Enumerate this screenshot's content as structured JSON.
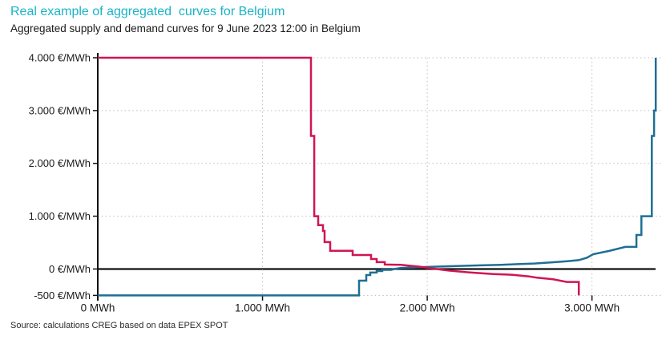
{
  "header": {
    "title": "Real example of aggregated  curves for Belgium",
    "subtitle": "Aggregated supply and demand curves for 9 June 2023 12:00 in Belgium"
  },
  "footer": {
    "source": "Source: calculations CREG based on data EPEX SPOT"
  },
  "colors": {
    "title": "#1ab3c6",
    "text": "#1a1a1a",
    "axis": "#111111",
    "zero_line": "#111111",
    "grid": "#c0c0c0",
    "supply": "#1d6f94",
    "demand": "#d01552"
  },
  "chart_data": {
    "type": "line",
    "title": "Real example of aggregated curves for Belgium",
    "subtitle": "Aggregated supply and demand curves for 9 June 2023 12:00 in Belgium",
    "xlabel": "MWh",
    "ylabel": "€/MWh",
    "xlim": [
      0,
      3425
    ],
    "ylim": [
      -500,
      4000
    ],
    "grid": "dotted",
    "legend": "none",
    "x_ticks": [
      {
        "value": 0,
        "label": "0 MWh"
      },
      {
        "value": 1000,
        "label": "1.000 MWh"
      },
      {
        "value": 2000,
        "label": "2.000 MWh"
      },
      {
        "value": 3000,
        "label": "3.000 MWh"
      }
    ],
    "y_ticks": [
      {
        "value": 4000,
        "label": "4.000 €/MWh"
      },
      {
        "value": 3000,
        "label": "3.000 €/MWh"
      },
      {
        "value": 2000,
        "label": "2.000 €/MWh"
      },
      {
        "value": 1000,
        "label": "1.000 €/MWh"
      },
      {
        "value": 0,
        "label": "0 €/MWh"
      },
      {
        "value": -500,
        "label": "-500 €/MWh"
      }
    ],
    "series": [
      {
        "name": "supply",
        "color": "#1d6f94",
        "points": [
          [
            0,
            -500
          ],
          [
            1586,
            -500
          ],
          [
            1586,
            -220
          ],
          [
            1630,
            -220
          ],
          [
            1630,
            -114
          ],
          [
            1654,
            -114
          ],
          [
            1654,
            -68
          ],
          [
            1693,
            -68
          ],
          [
            1693,
            -38
          ],
          [
            1727,
            -38
          ],
          [
            1727,
            -15
          ],
          [
            1780,
            -15
          ],
          [
            1800,
            0
          ],
          [
            1840,
            20
          ],
          [
            1950,
            33
          ],
          [
            2058,
            45
          ],
          [
            2200,
            58
          ],
          [
            2326,
            70
          ],
          [
            2450,
            80
          ],
          [
            2550,
            92
          ],
          [
            2650,
            105
          ],
          [
            2750,
            125
          ],
          [
            2850,
            148
          ],
          [
            2920,
            168
          ],
          [
            2970,
            215
          ],
          [
            3007,
            281
          ],
          [
            3105,
            342
          ],
          [
            3202,
            418
          ],
          [
            3270,
            418
          ],
          [
            3270,
            645
          ],
          [
            3300,
            645
          ],
          [
            3300,
            1000
          ],
          [
            3363,
            1000
          ],
          [
            3363,
            2520
          ],
          [
            3377,
            2520
          ],
          [
            3377,
            3000
          ],
          [
            3387,
            3000
          ],
          [
            3387,
            4000
          ]
        ]
      },
      {
        "name": "demand",
        "color": "#d01552",
        "points": [
          [
            0,
            4000
          ],
          [
            1294,
            4000
          ],
          [
            1294,
            2520
          ],
          [
            1314,
            2520
          ],
          [
            1314,
            1000
          ],
          [
            1338,
            1000
          ],
          [
            1338,
            830
          ],
          [
            1367,
            830
          ],
          [
            1367,
            720
          ],
          [
            1377,
            720
          ],
          [
            1377,
            510
          ],
          [
            1411,
            510
          ],
          [
            1411,
            345
          ],
          [
            1547,
            345
          ],
          [
            1547,
            265
          ],
          [
            1659,
            265
          ],
          [
            1659,
            190
          ],
          [
            1693,
            190
          ],
          [
            1693,
            130
          ],
          [
            1742,
            130
          ],
          [
            1742,
            85
          ],
          [
            1840,
            78
          ],
          [
            1950,
            45
          ],
          [
            2058,
            0
          ],
          [
            2130,
            -30
          ],
          [
            2250,
            -62
          ],
          [
            2400,
            -95
          ],
          [
            2520,
            -110
          ],
          [
            2618,
            -140
          ],
          [
            2666,
            -165
          ],
          [
            2764,
            -195
          ],
          [
            2847,
            -245
          ],
          [
            2920,
            -245
          ],
          [
            2920,
            -500
          ]
        ]
      }
    ]
  }
}
